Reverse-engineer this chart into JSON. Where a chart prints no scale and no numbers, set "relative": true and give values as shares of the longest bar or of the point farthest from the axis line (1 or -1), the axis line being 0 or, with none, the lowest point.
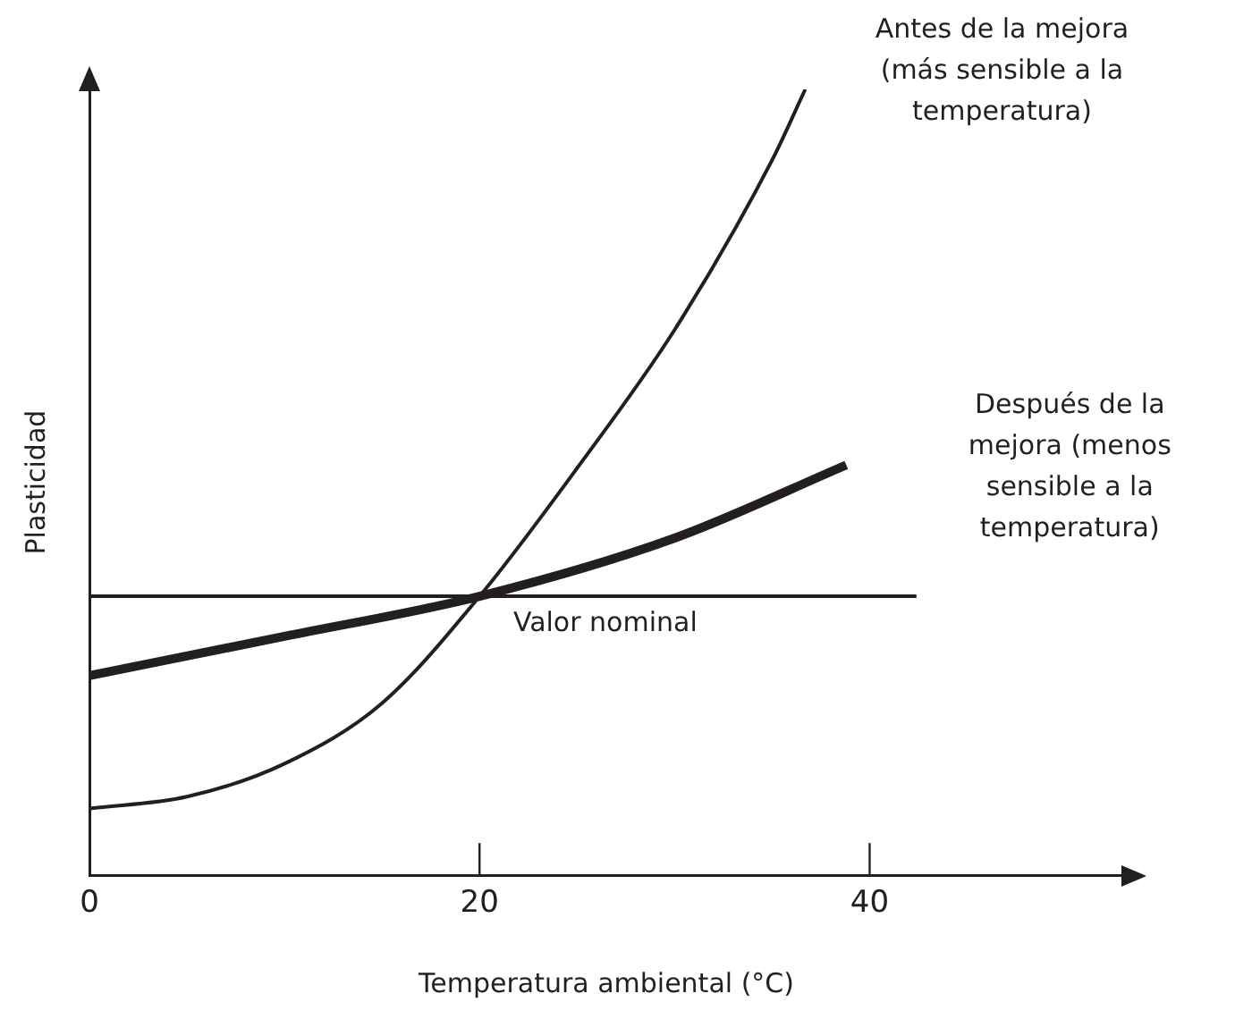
{
  "chart_data": {
    "type": "line",
    "xlabel": "Temperatura ambiental (°C)",
    "ylabel": "Plasticidad",
    "relative": true,
    "xlim": [
      0,
      53
    ],
    "xticks": [
      0,
      20,
      40
    ],
    "tick_labels": "x",
    "grid": false,
    "legend": false,
    "marker": "none",
    "line_style": "solid",
    "series": [
      {
        "name": "Antes de la mejora (más sensible a la temperatura)",
        "color": "#231f20",
        "x": [
          0,
          5,
          10,
          15,
          20,
          25,
          30,
          35,
          36.7
        ],
        "values": [
          0.085,
          0.1,
          0.142,
          0.219,
          0.355,
          0.518,
          0.694,
          0.91,
          1
        ]
      },
      {
        "name": "Después de la mejora (menos sensible a la temperatura)",
        "color": "#231f20",
        "x": [
          0,
          10,
          20,
          30,
          38.8
        ],
        "values": [
          0.254,
          0.304,
          0.355,
          0.429,
          0.522
        ]
      }
    ],
    "ref_lines": [
      {
        "axis": "y",
        "value": 0.355,
        "label": "Valor nominal",
        "color": "#231f20"
      }
    ]
  }
}
